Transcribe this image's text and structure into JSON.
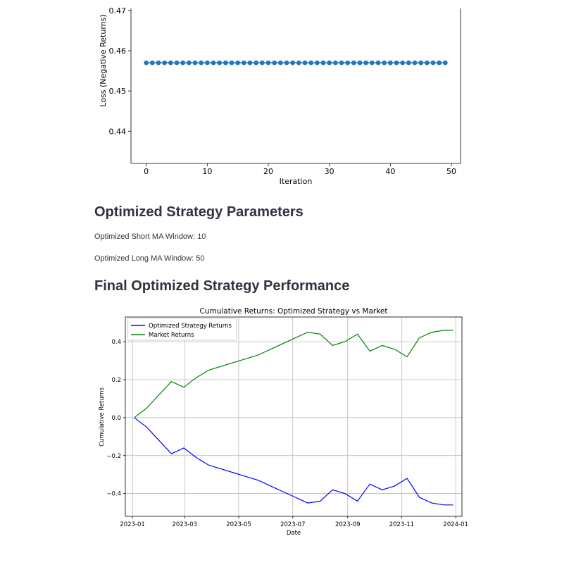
{
  "loss_chart": {
    "chart_data": {
      "type": "scatter",
      "title": "",
      "xlabel": "Iteration",
      "ylabel": "Loss (Negative Returns)",
      "x_ticks": [
        "0",
        "10",
        "20",
        "30",
        "40",
        "50"
      ],
      "y_ticks": [
        "0.44",
        "0.45",
        "0.46",
        "0.47"
      ],
      "xlim": [
        -2.5,
        51.5
      ],
      "ylim": [
        0.432,
        0.4705
      ],
      "x": [
        0,
        1,
        2,
        3,
        4,
        5,
        6,
        7,
        8,
        9,
        10,
        11,
        12,
        13,
        14,
        15,
        16,
        17,
        18,
        19,
        20,
        21,
        22,
        23,
        24,
        25,
        26,
        27,
        28,
        29,
        30,
        31,
        32,
        33,
        34,
        35,
        36,
        37,
        38,
        39,
        40,
        41,
        42,
        43,
        44,
        45,
        46,
        47,
        48,
        49
      ],
      "y": [
        0.457,
        0.457,
        0.457,
        0.457,
        0.457,
        0.457,
        0.457,
        0.457,
        0.457,
        0.457,
        0.457,
        0.457,
        0.457,
        0.457,
        0.457,
        0.457,
        0.457,
        0.457,
        0.457,
        0.457,
        0.457,
        0.457,
        0.457,
        0.457,
        0.457,
        0.457,
        0.457,
        0.457,
        0.457,
        0.457,
        0.457,
        0.457,
        0.457,
        0.457,
        0.457,
        0.457,
        0.457,
        0.457,
        0.457,
        0.457,
        0.457,
        0.457,
        0.457,
        0.457,
        0.457,
        0.457,
        0.457,
        0.457,
        0.457,
        0.457
      ],
      "color": "#1f77b4"
    }
  },
  "params_section": {
    "title": "Optimized Strategy Parameters",
    "short_window": "Optimized Short MA Window: 10",
    "long_window": "Optimized Long MA Window: 50"
  },
  "performance_section": {
    "title": "Final Optimized Strategy Performance"
  },
  "returns_chart": {
    "chart_data": {
      "type": "line",
      "title": "Cumulative Returns: Optimized Strategy vs Market",
      "xlabel": "Date",
      "ylabel": "Cumulative Returns",
      "x_ticks": [
        "2023-01",
        "2023-03",
        "2023-05",
        "2023-07",
        "2023-09",
        "2023-11",
        "2024-01"
      ],
      "y_ticks": [
        "−0.4",
        "−0.2",
        "0.0",
        "0.2",
        "0.4"
      ],
      "ylim": [
        -0.52,
        0.53
      ],
      "grid": true,
      "legend": "top-left",
      "x": [
        "2023-01-03",
        "2023-01-17",
        "2023-01-31",
        "2023-02-14",
        "2023-02-28",
        "2023-03-14",
        "2023-03-28",
        "2023-04-11",
        "2023-04-25",
        "2023-05-09",
        "2023-05-23",
        "2023-06-06",
        "2023-06-20",
        "2023-07-04",
        "2023-07-18",
        "2023-08-01",
        "2023-08-15",
        "2023-08-29",
        "2023-09-12",
        "2023-09-26",
        "2023-10-10",
        "2023-10-24",
        "2023-11-07",
        "2023-11-21",
        "2023-12-05",
        "2023-12-19",
        "2023-12-29"
      ],
      "series": [
        {
          "name": "Optimized Strategy Returns",
          "color": "#0000ff",
          "values": [
            0.0,
            -0.05,
            -0.12,
            -0.19,
            -0.16,
            -0.21,
            -0.25,
            -0.27,
            -0.29,
            -0.31,
            -0.33,
            -0.36,
            -0.39,
            -0.42,
            -0.45,
            -0.44,
            -0.38,
            -0.4,
            -0.44,
            -0.35,
            -0.38,
            -0.36,
            -0.32,
            -0.42,
            -0.45,
            -0.46,
            -0.46
          ]
        },
        {
          "name": "Market Returns",
          "color": "#008000",
          "values": [
            0.0,
            0.05,
            0.12,
            0.19,
            0.16,
            0.21,
            0.25,
            0.27,
            0.29,
            0.31,
            0.33,
            0.36,
            0.39,
            0.42,
            0.45,
            0.44,
            0.38,
            0.4,
            0.44,
            0.35,
            0.38,
            0.36,
            0.32,
            0.42,
            0.45,
            0.46,
            0.46
          ]
        }
      ]
    }
  }
}
